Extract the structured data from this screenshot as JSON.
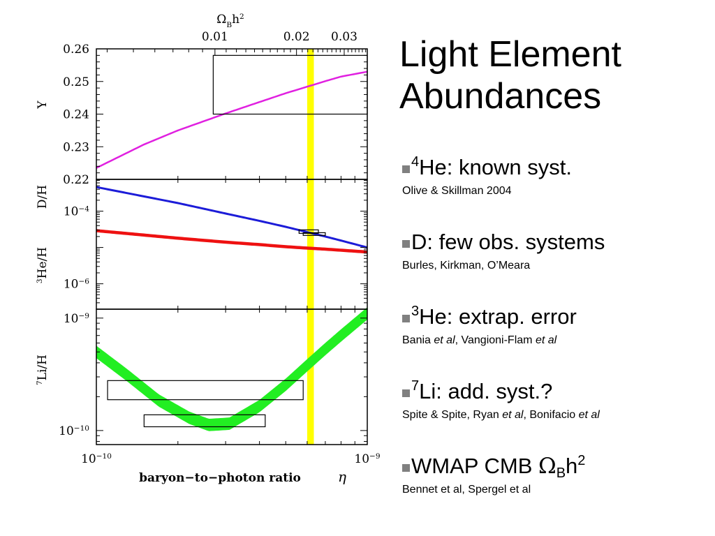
{
  "slide": {
    "title_line1": "Light Element",
    "title_line2": "Abundances",
    "bullets": [
      {
        "sup": "4",
        "text": "He:  known syst.",
        "ref": [
          "Olive & Skillman 2004"
        ]
      },
      {
        "sup": "",
        "text": "D: few obs. systems",
        "ref": [
          "Burles, Kirkman, O’Meara"
        ]
      },
      {
        "sup": "3",
        "text": "He: extrap. error",
        "ref": [
          "Bania ",
          "et al",
          ", Vangioni-Flam ",
          "et al"
        ]
      },
      {
        "sup": "7",
        "text": "Li:  add. syst.?",
        "ref": [
          "Spite & Spite, Ryan ",
          "et al",
          ", Bonifacio ",
          "et al"
        ]
      },
      {
        "sup": "",
        "text": "WMAP CMB ",
        "omega": "Ω",
        "sub": "B",
        "h": "h",
        "sup2": "2",
        "ref": [
          "Bennet et al, Spergel et al"
        ]
      }
    ]
  },
  "colors": {
    "he4_curve": "#e020e0",
    "d_curve": "#1c1cd8",
    "he3_curve": "#ee1111",
    "li7_band": "#22ee22",
    "wmap_band": "#ffff00"
  },
  "chart_data": {
    "type": "line",
    "x_scale": "log",
    "xlim": [
      1e-10,
      1e-09
    ],
    "xlabel": "baryon−to−photon ratio",
    "xlabel_symbol": "η",
    "x_ticklabels": [
      {
        "v": 1e-10,
        "mant": "10",
        "exp": "−10"
      },
      {
        "v": 1e-09,
        "mant": "10",
        "exp": "−9"
      }
    ],
    "top_axis": {
      "label_main": "Ω",
      "label_sub": "B",
      "label_h": "h",
      "label_sup": "2",
      "ticklabels": [
        {
          "v": 0.01,
          "text": "0.01"
        },
        {
          "v": 0.02,
          "text": "0.02"
        },
        {
          "v": 0.03,
          "text": "0.03"
        }
      ]
    },
    "wmap_band_eta": [
      6e-10,
      6.35e-10
    ],
    "panels": [
      {
        "id": "Y",
        "ylabel": "Y",
        "y_scale": "linear",
        "ylim": [
          0.22,
          0.26
        ],
        "y_ticklabels": [
          "0.22",
          "0.23",
          "0.24",
          "0.25",
          "0.26"
        ],
        "series": [
          {
            "eta": [
              1e-10,
              1.5e-10,
              2e-10,
              3e-10,
              4e-10,
              5e-10,
              6e-10,
              7e-10,
              8e-10,
              1e-09
            ],
            "values": [
              0.2235,
              0.2307,
              0.235,
              0.2402,
              0.2437,
              0.2464,
              0.2484,
              0.2501,
              0.2515,
              0.253
            ]
          }
        ],
        "obs_boxes": [
          {
            "eta": [
              2.7e-10,
              1e-09
            ],
            "y": [
              0.24,
              0.258
            ]
          }
        ]
      },
      {
        "id": "DH_He3H",
        "ylabel_top": "D/H",
        "ylabel_bottom_sup": "3",
        "ylabel_bottom": "He/H",
        "y_scale": "log",
        "ylim": [
          2e-07,
          0.00075
        ],
        "y_ticklabels": [
          {
            "v": 0.0001,
            "mant": "10",
            "exp": "−4"
          },
          {
            "v": 1e-06,
            "mant": "10",
            "exp": "−6"
          }
        ],
        "series": [
          {
            "name": "D/H",
            "eta": [
              1e-10,
              2e-10,
              3e-10,
              4e-10,
              5e-10,
              6e-10,
              7e-10,
              8e-10,
              1e-09
            ],
            "values": [
              0.00046,
              0.000167,
              8.6e-05,
              5.4e-05,
              3.7e-05,
              2.65e-05,
              2e-05,
              1.55e-05,
              1e-05
            ]
          },
          {
            "name": "3He/H",
            "eta": [
              1e-10,
              2e-10,
              3e-10,
              4e-10,
              5e-10,
              6e-10,
              7e-10,
              8e-10,
              1e-09
            ],
            "values": [
              2.9e-05,
              1.8e-05,
              1.4e-05,
              1.2e-05,
              1.05e-05,
              9.6e-06,
              9e-06,
              8.4e-06,
              7.5e-06
            ]
          }
        ],
        "obs_boxes": [
          {
            "eta": [
              5.6e-10,
              6.6e-10
            ],
            "y": [
              2.45e-05,
              3.05e-05
            ]
          },
          {
            "eta": [
              5.8e-10,
              7e-10
            ],
            "y": [
              2.15e-05,
              2.55e-05
            ]
          }
        ]
      },
      {
        "id": "Li7H",
        "ylabel_sup": "7",
        "ylabel": "Li/H",
        "y_scale": "log",
        "ylim": [
          7.5e-11,
          1.2e-09
        ],
        "y_ticklabels": [
          {
            "v": 1e-09,
            "mant": "10",
            "exp": "−9"
          },
          {
            "v": 1e-10,
            "mant": "10",
            "exp": "−10"
          }
        ],
        "series": [
          {
            "name": "7Li/H",
            "eta": [
              1e-10,
              1.3e-10,
              1.7e-10,
              2.2e-10,
              2.6e-10,
              3.1e-10,
              4e-10,
              5e-10,
              6e-10,
              7e-10,
              8e-10,
              1e-09
            ],
            "values": [
              5e-10,
              3.1e-10,
              1.85e-10,
              1.3e-10,
              1.12e-10,
              1.15e-10,
              1.65e-10,
              2.55e-10,
              3.8e-10,
              5.3e-10,
              7e-10,
              1.1e-09
            ],
            "band_dex": 0.055
          }
        ],
        "obs_boxes": [
          {
            "eta": [
              1.1e-10,
              5.8e-10
            ],
            "y": [
              1.88e-10,
              2.78e-10
            ]
          },
          {
            "eta": [
              1.5e-10,
              4.2e-10
            ],
            "y": [
              1.08e-10,
              1.38e-10
            ]
          }
        ]
      }
    ]
  }
}
